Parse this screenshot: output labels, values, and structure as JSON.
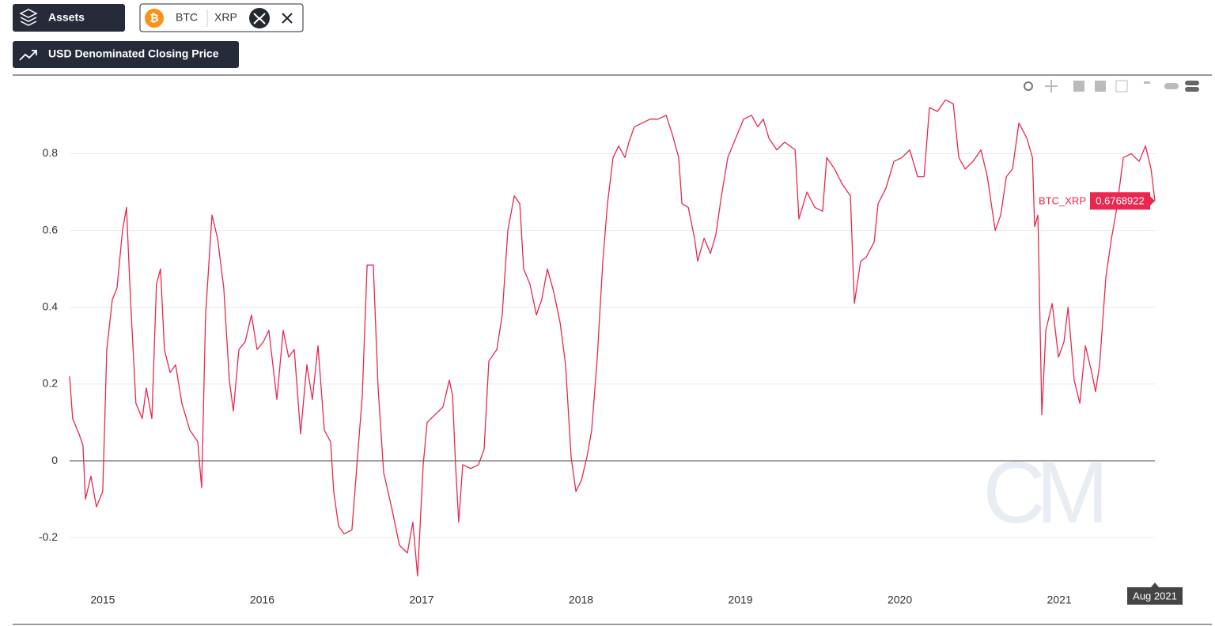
{
  "toolbar": {
    "assets_button": "Assets",
    "asset_1": "BTC",
    "asset_2": "XRP",
    "metric_button": "USD Denominated Closing Price"
  },
  "chart_data": {
    "type": "line",
    "x": [
      2014.792,
      2014.811,
      2014.851,
      2014.876,
      2014.891,
      2014.926,
      2014.96,
      2015.0,
      2015.025,
      2015.06,
      2015.089,
      2015.124,
      2015.149,
      2015.174,
      2015.208,
      2015.248,
      2015.273,
      2015.308,
      2015.337,
      2015.362,
      2015.387,
      2015.422,
      2015.457,
      2015.496,
      2015.546,
      2015.596,
      2015.62,
      2015.645,
      2015.685,
      2015.72,
      2015.759,
      2015.794,
      2015.819,
      2015.854,
      2015.893,
      2015.933,
      2015.968,
      2016.007,
      2016.042,
      2016.092,
      2016.132,
      2016.166,
      2016.201,
      2016.241,
      2016.28,
      2016.315,
      2016.35,
      2016.39,
      2016.429,
      2016.449,
      2016.479,
      2016.514,
      2016.563,
      2016.598,
      2016.628,
      2016.658,
      2016.697,
      2016.727,
      2016.762,
      2016.811,
      2016.861,
      2016.911,
      2016.945,
      2016.975,
      2017.01,
      2017.035,
      2017.084,
      2017.134,
      2017.174,
      2017.194,
      2017.213,
      2017.233,
      2017.258,
      2017.308,
      2017.357,
      2017.392,
      2017.422,
      2017.472,
      2017.506,
      2017.541,
      2017.581,
      2017.616,
      2017.64,
      2017.68,
      2017.72,
      2017.754,
      2017.789,
      2017.829,
      2017.869,
      2017.903,
      2017.938,
      2017.968,
      2018.003,
      2018.037,
      2018.067,
      2018.102,
      2018.137,
      2018.166,
      2018.201,
      2018.236,
      2018.276,
      2018.3,
      2018.335,
      2018.385,
      2018.434,
      2018.484,
      2018.534,
      2018.573,
      2018.613,
      2018.633,
      2018.673,
      2018.712,
      2018.732,
      2018.772,
      2018.812,
      2018.846,
      2018.881,
      2018.921,
      2018.97,
      2019.02,
      2019.07,
      2019.109,
      2019.144,
      2019.179,
      2019.228,
      2019.278,
      2019.343,
      2019.367,
      2019.417,
      2019.467,
      2019.516,
      2019.541,
      2019.591,
      2019.64,
      2019.69,
      2019.715,
      2019.754,
      2019.789,
      2019.839,
      2019.864,
      2019.913,
      2019.963,
      2020.013,
      2020.062,
      2020.112,
      2020.152,
      2020.186,
      2020.236,
      2020.286,
      2020.335,
      2020.37,
      2020.41,
      2020.459,
      2020.509,
      2020.549,
      2020.598,
      2020.633,
      2020.668,
      2020.707,
      2020.747,
      2020.797,
      2020.832,
      2020.846,
      2020.866,
      2020.891,
      2020.916,
      2020.956,
      2020.995,
      2021.03,
      2021.055,
      2021.094,
      2021.129,
      2021.164,
      2021.204,
      2021.228,
      2021.253,
      2021.293,
      2021.328,
      2021.362,
      2021.402,
      2021.452,
      2021.501,
      2021.541,
      2021.576,
      2021.6
    ],
    "series": [
      {
        "name": "BTC_XRP",
        "color": "#e8284f",
        "values": [
          0.22,
          0.11,
          0.07,
          0.04,
          -0.1,
          -0.04,
          -0.12,
          -0.08,
          0.29,
          0.42,
          0.45,
          0.6,
          0.66,
          0.42,
          0.15,
          0.11,
          0.19,
          0.11,
          0.46,
          0.5,
          0.29,
          0.23,
          0.25,
          0.15,
          0.08,
          0.05,
          -0.07,
          0.38,
          0.64,
          0.58,
          0.45,
          0.21,
          0.13,
          0.29,
          0.31,
          0.38,
          0.29,
          0.31,
          0.34,
          0.16,
          0.34,
          0.27,
          0.29,
          0.07,
          0.25,
          0.16,
          0.3,
          0.08,
          0.05,
          -0.08,
          -0.17,
          -0.19,
          -0.18,
          0.01,
          0.17,
          0.51,
          0.51,
          0.19,
          -0.03,
          -0.12,
          -0.22,
          -0.24,
          -0.16,
          -0.3,
          -0.01,
          0.1,
          0.12,
          0.14,
          0.21,
          0.17,
          -0.01,
          -0.16,
          -0.01,
          -0.02,
          -0.01,
          0.03,
          0.26,
          0.29,
          0.38,
          0.6,
          0.69,
          0.67,
          0.5,
          0.46,
          0.38,
          0.42,
          0.5,
          0.44,
          0.36,
          0.25,
          0.01,
          -0.08,
          -0.05,
          0.01,
          0.08,
          0.27,
          0.52,
          0.67,
          0.79,
          0.82,
          0.79,
          0.83,
          0.87,
          0.88,
          0.89,
          0.89,
          0.9,
          0.85,
          0.79,
          0.67,
          0.66,
          0.58,
          0.52,
          0.58,
          0.54,
          0.59,
          0.69,
          0.79,
          0.84,
          0.89,
          0.9,
          0.87,
          0.89,
          0.84,
          0.81,
          0.83,
          0.81,
          0.63,
          0.7,
          0.66,
          0.65,
          0.79,
          0.76,
          0.72,
          0.69,
          0.41,
          0.52,
          0.53,
          0.57,
          0.67,
          0.71,
          0.78,
          0.79,
          0.81,
          0.74,
          0.74,
          0.92,
          0.91,
          0.94,
          0.93,
          0.79,
          0.76,
          0.78,
          0.81,
          0.74,
          0.6,
          0.64,
          0.74,
          0.76,
          0.88,
          0.84,
          0.79,
          0.61,
          0.64,
          0.12,
          0.34,
          0.41,
          0.27,
          0.31,
          0.4,
          0.21,
          0.15,
          0.3,
          0.23,
          0.18,
          0.25,
          0.48,
          0.58,
          0.66,
          0.79,
          0.8,
          0.78,
          0.82,
          0.76,
          0.6768922
        ]
      }
    ],
    "xlim": [
      2014.792,
      2021.6
    ],
    "xticks": [
      2015,
      2016,
      2017,
      2018,
      2019,
      2020,
      2021
    ],
    "ylim": [
      -0.32,
      0.98
    ],
    "yticks": [
      -0.2,
      0,
      0.2,
      0.4,
      0.6,
      0.8
    ],
    "grid": true,
    "hover_x_label": "Aug 2021",
    "watermark": "CM"
  }
}
